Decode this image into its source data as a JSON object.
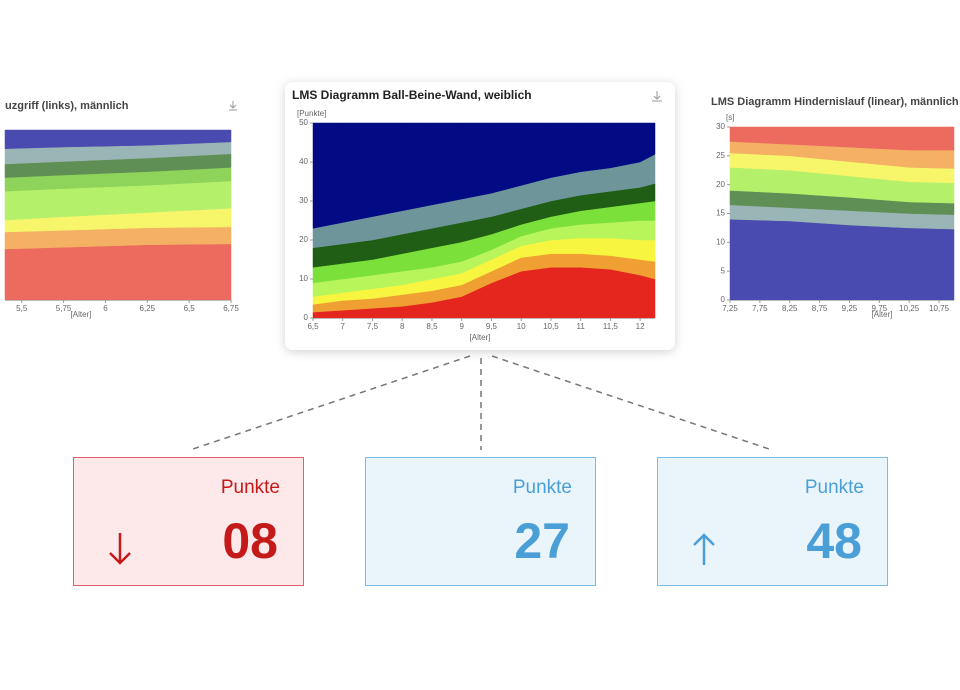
{
  "chart_data": [
    {
      "type": "area",
      "stacked": true,
      "title": "uzgriff (links), männlich",
      "xlabel": "[Alter]",
      "x": [
        5.4,
        5.75,
        6.25,
        6.75
      ],
      "xlim": [
        5.4,
        6.75
      ],
      "ylim": [
        0,
        100
      ],
      "xticks": [
        {
          "value": 5.5,
          "label": "5,5"
        },
        {
          "value": 5.75,
          "label": "5,75"
        },
        6,
        {
          "value": 6.25,
          "label": "6,25"
        },
        {
          "value": 6.5,
          "label": "6,5"
        },
        {
          "value": 6.75,
          "label": "6,75"
        }
      ],
      "series": [
        {
          "color": "#ec6a5e",
          "values": [
            30,
            31,
            32.5,
            33
          ]
        },
        {
          "color": "#f4b063",
          "values": [
            10,
            10,
            10,
            10
          ]
        },
        {
          "color": "#f7f56a",
          "values": [
            7,
            8,
            9,
            11
          ]
        },
        {
          "color": "#b5f06a",
          "values": [
            17,
            16.5,
            16,
            16
          ]
        },
        {
          "color": "#8fd45a",
          "values": [
            8,
            8,
            8,
            8
          ]
        },
        {
          "color": "#5f8f55",
          "values": [
            8,
            8,
            8,
            8
          ]
        },
        {
          "color": "#9ab5b5",
          "values": [
            9,
            8.5,
            7.5,
            7
          ]
        },
        {
          "color": "#4a4bb0",
          "values": [
            11,
            10,
            9,
            7
          ]
        }
      ]
    },
    {
      "type": "area",
      "stacked": true,
      "title": "LMS Diagramm Ball-Beine-Wand, weiblich",
      "ylabel": "[Punkte]",
      "xlabel": "[Alter]",
      "x": [
        6.5,
        7,
        7.5,
        8,
        8.5,
        9,
        9.5,
        10,
        10.5,
        11,
        11.5,
        12,
        12.25
      ],
      "xlim": [
        6.5,
        12.25
      ],
      "ylim": [
        0,
        50
      ],
      "yticks": [
        0,
        10,
        20,
        30,
        40,
        50
      ],
      "xticks": [
        {
          "value": 6.5,
          "label": "6,5"
        },
        7,
        {
          "value": 7.5,
          "label": "7,5"
        },
        8,
        {
          "value": 8.5,
          "label": "8,5"
        },
        9,
        {
          "value": 9.5,
          "label": "9,5"
        },
        10,
        {
          "value": 10.5,
          "label": "10,5"
        },
        11,
        {
          "value": 11.5,
          "label": "11,5"
        },
        12
      ],
      "series": [
        {
          "color": "#e5261e",
          "values": [
            1.5,
            2,
            2.5,
            3,
            4,
            5.5,
            9,
            12,
            13,
            13,
            12.5,
            11,
            10
          ]
        },
        {
          "color": "#f0a033",
          "values": [
            2,
            2.5,
            2.5,
            3,
            3,
            3,
            3,
            3.5,
            3.5,
            3.5,
            3.5,
            4,
            4.5
          ]
        },
        {
          "color": "#f7f53f",
          "values": [
            2,
            2,
            2.5,
            2.5,
            3,
            3,
            3,
            3,
            3.5,
            4,
            4.5,
            5,
            5.5
          ]
        },
        {
          "color": "#b8f55a",
          "values": [
            3.5,
            3.5,
            3.5,
            3.5,
            3,
            3,
            2.5,
            2.5,
            3,
            3.5,
            4,
            5,
            5
          ]
        },
        {
          "color": "#7be03a",
          "values": [
            4,
            4,
            4,
            4.5,
            5,
            5,
            4,
            3,
            3,
            3.5,
            4,
            4.5,
            5
          ]
        },
        {
          "color": "#1f5e14",
          "values": [
            5,
            5,
            5,
            5,
            5,
            5,
            4.5,
            4,
            4,
            4,
            4,
            4,
            4.5
          ]
        },
        {
          "color": "#6e959a",
          "values": [
            5,
            5.5,
            6,
            6,
            6,
            6,
            6,
            6,
            6,
            6,
            6,
            6.5,
            7.5
          ]
        },
        {
          "color": "#020a84",
          "values": [
            27,
            25.5,
            24,
            22.5,
            21,
            19.5,
            18,
            16,
            14,
            12.5,
            11.5,
            10,
            8
          ]
        }
      ]
    },
    {
      "type": "area",
      "stacked": true,
      "title": "LMS Diagramm Hindernislauf (linear), männlich",
      "ylabel": "[s]",
      "xlabel": "[Alter]",
      "x": [
        7.25,
        8.25,
        9.25,
        10.25,
        11
      ],
      "xlim": [
        7.25,
        11
      ],
      "ylim": [
        0,
        30
      ],
      "yticks": [
        0,
        5,
        10,
        15,
        20,
        25,
        30
      ],
      "xticks": [
        {
          "value": 7.25,
          "label": "7,25"
        },
        {
          "value": 7.75,
          "label": "7,75"
        },
        {
          "value": 8.25,
          "label": "8,25"
        },
        {
          "value": 8.75,
          "label": "8,75"
        },
        {
          "value": 9.25,
          "label": "9,25"
        },
        {
          "value": 9.75,
          "label": "9,75"
        },
        {
          "value": 10.25,
          "label": "10,25"
        },
        {
          "value": 10.75,
          "label": "10,75"
        }
      ],
      "series": [
        {
          "color": "#4a4bb0",
          "values": [
            14,
            13.7,
            13,
            12.5,
            12.3
          ]
        },
        {
          "color": "#9ab5b5",
          "values": [
            2.5,
            2.3,
            2.5,
            2.5,
            2.5
          ]
        },
        {
          "color": "#5f8f55",
          "values": [
            2.5,
            2.5,
            2.3,
            2,
            2
          ]
        },
        {
          "color": "#b5f06a",
          "values": [
            4,
            4,
            3.7,
            3.5,
            3.5
          ]
        },
        {
          "color": "#f7f56a",
          "values": [
            2.5,
            2.5,
            2.5,
            2.5,
            2.5
          ]
        },
        {
          "color": "#f4b063",
          "values": [
            2,
            2,
            2.5,
            3,
            3.2
          ]
        },
        {
          "color": "#ec6a5e",
          "values": [
            2.5,
            3,
            3.5,
            4,
            4
          ]
        }
      ]
    }
  ],
  "cards": [
    {
      "label": "Punkte",
      "value": "08"
    },
    {
      "label": "Punkte",
      "value": "27"
    },
    {
      "label": "Punkte",
      "value": "48"
    }
  ]
}
